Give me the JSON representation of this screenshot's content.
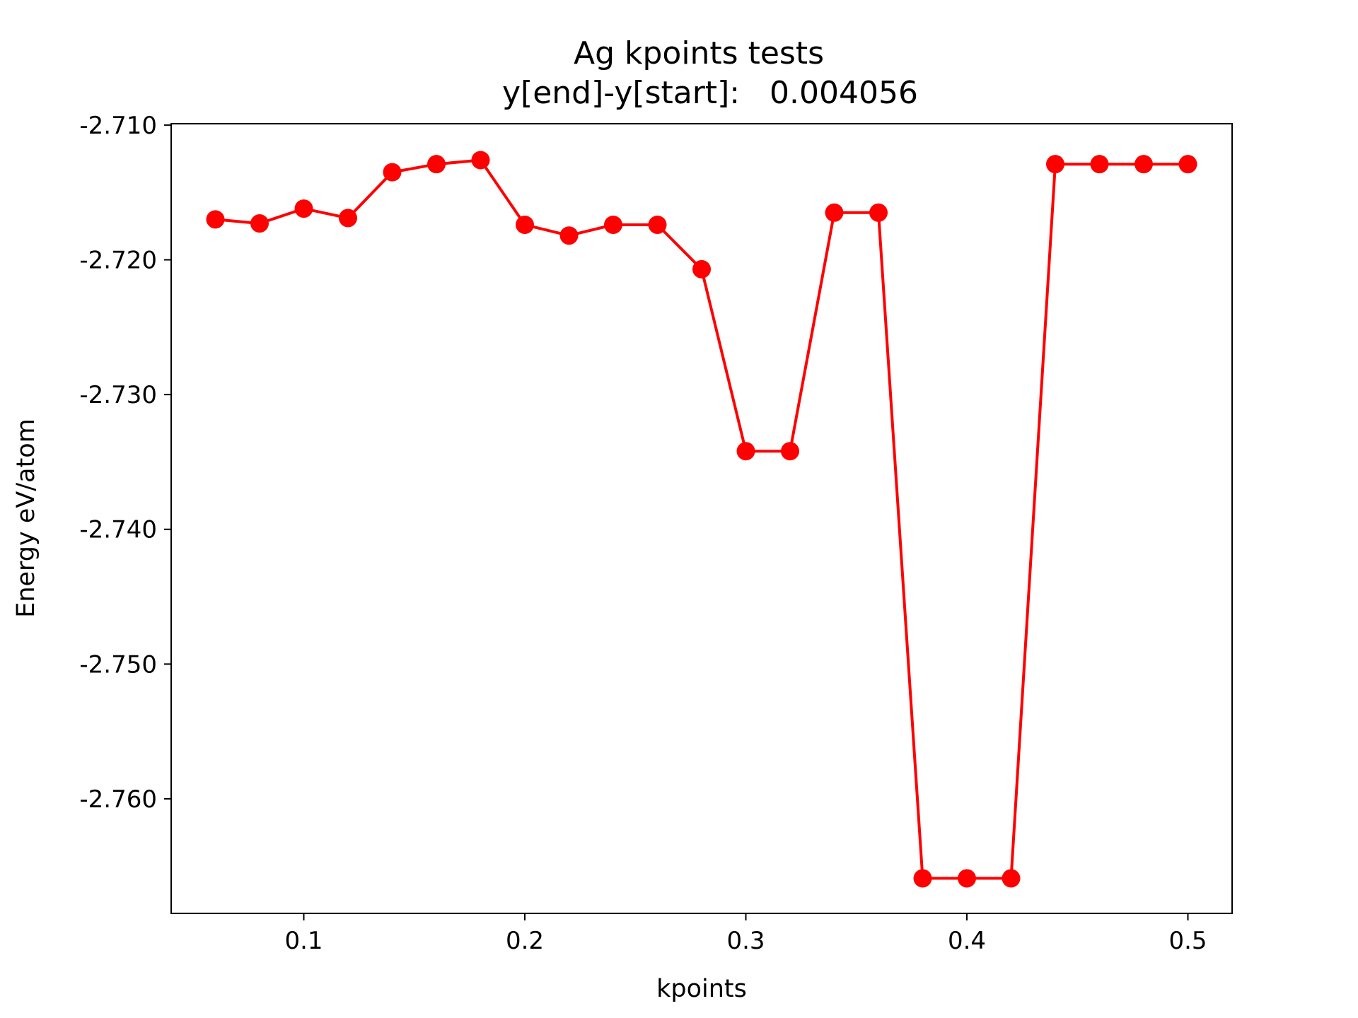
{
  "chart_data": {
    "type": "line",
    "title": "Ag kpoints tests",
    "subtitle": "y[end]-y[start]:   0.004056",
    "xlabel": "kpoints",
    "ylabel": "Energy eV/atom",
    "xlim": [
      0.04,
      0.52
    ],
    "ylim": [
      -2.7685,
      -2.7099
    ],
    "xticks": [
      0.1,
      0.2,
      0.3,
      0.4,
      0.5
    ],
    "xtick_labels": [
      "0.1",
      "0.2",
      "0.3",
      "0.4",
      "0.5"
    ],
    "yticks": [
      -2.71,
      -2.72,
      -2.73,
      -2.74,
      -2.75,
      -2.76
    ],
    "ytick_labels": [
      "-2.710",
      "-2.720",
      "-2.730",
      "-2.740",
      "-2.750",
      "-2.760"
    ],
    "grid": false,
    "series": [
      {
        "name": "Ag",
        "color": "#ff0000",
        "marker": "circle",
        "x": [
          0.06,
          0.08,
          0.1,
          0.12,
          0.14,
          0.16,
          0.18,
          0.2,
          0.22,
          0.24,
          0.26,
          0.28,
          0.3,
          0.32,
          0.34,
          0.36,
          0.38,
          0.4,
          0.42,
          0.44,
          0.46,
          0.48,
          0.5
        ],
        "y": [
          -2.717,
          -2.7173,
          -2.7162,
          -2.7169,
          -2.7135,
          -2.7129,
          -2.7126,
          -2.7174,
          -2.7182,
          -2.7174,
          -2.7174,
          -2.7207,
          -2.7342,
          -2.7342,
          -2.7165,
          -2.7165,
          -2.7659,
          -2.7659,
          -2.7659,
          -2.7129,
          -2.7129,
          -2.7129,
          -2.7129
        ]
      }
    ]
  }
}
